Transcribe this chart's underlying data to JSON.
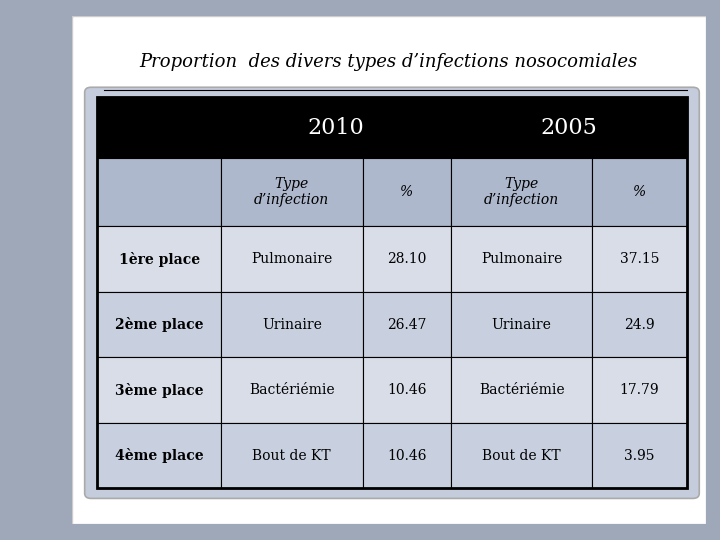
{
  "title": "Proportion  des divers types d’infections nosocomiales",
  "header_year_2010": "2010",
  "header_year_2005": "2005",
  "subheader_type": "Type\nd’infection",
  "subheader_pct": "%",
  "rows": [
    {
      "rank": "1ère place",
      "type_2010": "Pulmonaire",
      "pct_2010": "28.10",
      "type_2005": "Pulmonaire",
      "pct_2005": "37.15"
    },
    {
      "rank": "2ème place",
      "type_2010": "Urinaire",
      "pct_2010": "26.47",
      "type_2005": "Urinaire",
      "pct_2005": "24.9"
    },
    {
      "rank": "3ème place",
      "type_2010": "Bactériémie",
      "pct_2010": "10.46",
      "type_2005": "Bactériémie",
      "pct_2005": "17.79"
    },
    {
      "rank": "4ème place",
      "type_2010": "Bout de KT",
      "pct_2010": "10.46",
      "type_2005": "Bout de KT",
      "pct_2005": "3.95"
    }
  ],
  "bg_color": "#c5ccdc",
  "header_bg": "#000000",
  "header_fg": "#ffffff",
  "subheader_bg": "#adb8cc",
  "row_bg_light": "#d8dde8",
  "row_bg_dark": "#c8d0e0",
  "border_color": "#000000",
  "title_color": "#000000",
  "fig_bg": "#9fa8b8",
  "slide_bg": "#ffffff",
  "figsize": [
    7.2,
    5.4
  ],
  "dpi": 100
}
